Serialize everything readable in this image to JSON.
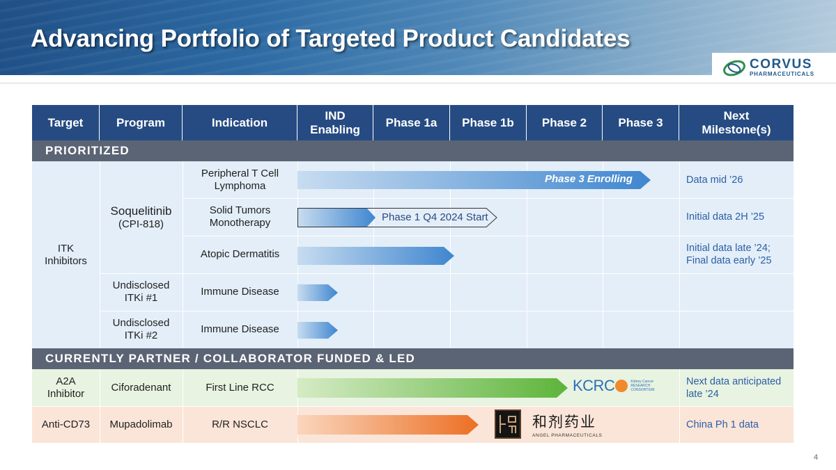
{
  "slide": {
    "title": "Advancing Portfolio of Targeted Product Candidates",
    "page_number": "4"
  },
  "logo": {
    "name": "CORVUS",
    "subtitle": "PHARMACEUTICALS"
  },
  "table": {
    "headers": [
      "Target",
      "Program",
      "Indication",
      "IND\nEnabling",
      "Phase 1a",
      "Phase 1b",
      "Phase 2",
      "Phase 3",
      "Next\nMilestone(s)"
    ],
    "sections": {
      "prioritized": "PRIORITIZED",
      "partner": "CURRENTLY PARTNER / COLLABORATOR FUNDED & LED"
    },
    "prioritized": {
      "target": "ITK\nInhibitors",
      "programs": [
        {
          "name": "Soquelitinib",
          "code": "(CPI-818)"
        },
        {
          "name": "Undisclosed\nITKi #1"
        },
        {
          "name": "Undisclosed\nITKi #2"
        }
      ],
      "rows": [
        {
          "indication": "Peripheral T Cell\nLymphoma",
          "milestone": "Data mid ’26",
          "bar_label": "Phase 3 Enrolling",
          "progress_phase": "Phase 3"
        },
        {
          "indication": "Solid Tumors\nMonotherapy",
          "milestone": "Initial data 2H ’25",
          "bar_label": "Phase 1 Q4 2024 Start",
          "progress_phase": "IND Enabling"
        },
        {
          "indication": "Atopic Dermatitis",
          "milestone": "Initial data late ’24;\nFinal data early ’25",
          "progress_phase": "Phase 1a"
        },
        {
          "indication": "Immune Disease",
          "milestone": "",
          "progress_phase": "IND Enabling"
        },
        {
          "indication": "Immune Disease",
          "milestone": "",
          "progress_phase": "IND Enabling"
        }
      ]
    },
    "partner": [
      {
        "target": "A2A\nInhibitor",
        "program": "Ciforadenant",
        "indication": "First Line RCC",
        "milestone": "Next data anticipated\nlate ’24",
        "partner_logo": {
          "name": "KCRC",
          "text": "Kidney Cancer\nRESEARCH\nCONSORTIUM"
        },
        "color": "#e8f3e1",
        "bar_color": "#6cbf4a"
      },
      {
        "target": "Anti-CD73",
        "program": "Mupadolimab",
        "indication": "R/R NSCLC",
        "milestone": "China Ph 1 data",
        "partner_logo": {
          "name": "和剂药业",
          "text": "ANGEL PHARMACEUTICALS"
        },
        "color": "#fbe5d8",
        "bar_color": "#ee7a2f"
      }
    ]
  }
}
